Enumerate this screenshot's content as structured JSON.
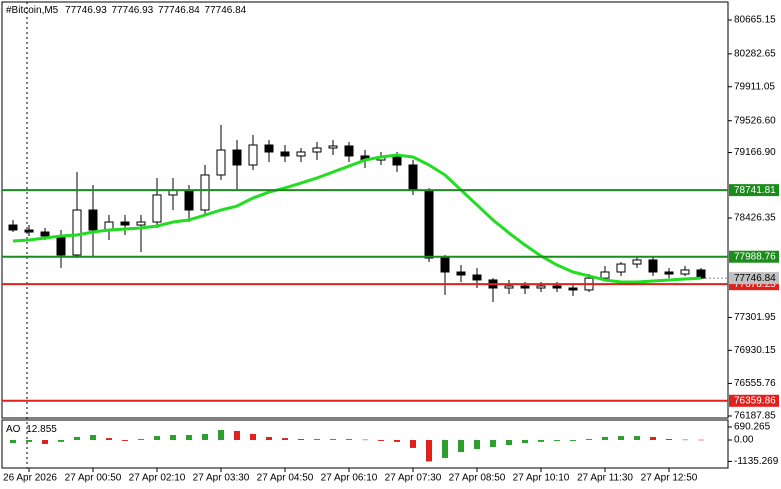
{
  "chart_data": [
    {
      "type": "candlestick",
      "symbol": "#Bitcoin,M5",
      "quote": [
        77746.93,
        77746.93,
        77746.84,
        77746.84
      ],
      "categories": [
        null,
        "26 Apr 2026",
        null,
        null,
        null,
        "27 Apr 00:50",
        null,
        null,
        null,
        "27 Apr 02:10",
        null,
        null,
        null,
        "27 Apr 03:30",
        null,
        null,
        null,
        "27 Apr 04:50",
        null,
        null,
        null,
        "27 Apr 06:10",
        null,
        null,
        null,
        "27 Apr 07:30",
        null,
        null,
        null,
        "27 Apr 08:50",
        null,
        null,
        null,
        "27 Apr 10:10",
        null,
        null,
        null,
        "27 Apr 11:30",
        null,
        null,
        null,
        "27 Apr 12:50",
        null,
        null
      ],
      "open": [
        78347,
        78291,
        78268,
        78223,
        78008,
        78517,
        78291,
        78381,
        78347,
        78381,
        78687,
        78743,
        78517,
        78913,
        79195,
        79026,
        79252,
        79173,
        79128,
        79173,
        79218,
        79241,
        79128,
        79082,
        79116,
        79026,
        78743,
        77974,
        77816,
        77782,
        77726,
        77635,
        77658,
        77635,
        77658,
        77635,
        77613,
        77747,
        77816,
        77906,
        77952,
        77816,
        77793,
        77839
      ],
      "high": [
        78404,
        78347,
        78313,
        78291,
        78947,
        78800,
        78460,
        78460,
        78460,
        78879,
        78879,
        78800,
        79026,
        79478,
        79308,
        79365,
        79308,
        79252,
        79218,
        79286,
        79308,
        79286,
        79195,
        79173,
        79173,
        79082,
        78766,
        78008,
        77895,
        77861,
        77747,
        77726,
        77703,
        77703,
        77703,
        77692,
        77793,
        77884,
        77929,
        77997,
        77997,
        77861,
        77884,
        77861
      ],
      "low": [
        78268,
        78223,
        78178,
        77861,
        77974,
        77986,
        78178,
        78234,
        78042,
        78313,
        78517,
        78381,
        78460,
        78856,
        78743,
        78969,
        79060,
        79060,
        79060,
        79082,
        79139,
        79060,
        78992,
        79026,
        78947,
        78687,
        77929,
        77556,
        77703,
        77635,
        77477,
        77567,
        77567,
        77590,
        77590,
        77545,
        77590,
        77726,
        77771,
        77861,
        77771,
        77747,
        77771,
        77737
      ],
      "close": [
        78291,
        78268,
        78223,
        78008,
        78517,
        78291,
        78381,
        78347,
        78381,
        78687,
        78743,
        78517,
        78913,
        79195,
        79026,
        79252,
        79173,
        79128,
        79173,
        79218,
        79241,
        79128,
        79082,
        79116,
        79026,
        78743,
        77974,
        77816,
        77782,
        77726,
        77635,
        77658,
        77635,
        77658,
        77635,
        77613,
        77747,
        77816,
        77906,
        77952,
        77816,
        77793,
        77839,
        77746.84
      ],
      "ma": {
        "color": "#22dd22",
        "values": [
          78167,
          78178,
          78200,
          78223,
          78234,
          78268,
          78291,
          78302,
          78313,
          78336,
          78381,
          78404,
          78460,
          78517,
          78562,
          78653,
          78720,
          78766,
          78822,
          78879,
          78947,
          79014,
          79082,
          79116,
          79139,
          79116,
          79026,
          78913,
          78743,
          78574,
          78404,
          78257,
          78121,
          77997,
          77895,
          77816,
          77771,
          77726,
          77703,
          77703,
          77714,
          77726,
          77737,
          77747
        ]
      },
      "levels": [
        {
          "value": 78741.81,
          "color": "#1c8c1c"
        },
        {
          "value": 77988.76,
          "color": "#1c8c1c"
        },
        {
          "value": 77678.25,
          "color": "#e0201c"
        },
        {
          "value": 76359.86,
          "color": "#e0201c"
        }
      ],
      "ylim": [
        76165,
        80869
      ],
      "yticks": [
        80665.15,
        80282.65,
        79911.05,
        {
          "value": 79526.6,
          "label": "79526.60"
        },
        {
          "value": 79166.9,
          "label": "79166.90"
        },
        78426.35,
        77301.95,
        76930.15,
        76555.76,
        76187.85
      ]
    },
    {
      "type": "bar",
      "series": [
        {
          "name": "AO",
          "up_color": "#2e9e2e",
          "down_color": "#e0201c",
          "values": [
            -160,
            -100,
            -210,
            -100,
            160,
            265,
            100,
            -50,
            50,
            210,
            265,
            265,
            320,
            530,
            480,
            320,
            160,
            100,
            50,
            50,
            50,
            50,
            20,
            -50,
            -100,
            -420,
            -1135,
            -950,
            -640,
            -480,
            -370,
            -265,
            -160,
            -100,
            -50,
            -50,
            50,
            160,
            210,
            210,
            160,
            50,
            20,
            12.855
          ]
        }
      ],
      "ylim": [
        -1431,
        1007
      ],
      "yticks": [
        690.265,
        {
          "value": 0,
          "label": "0.00"
        },
        -1135.269
      ]
    }
  ]
}
